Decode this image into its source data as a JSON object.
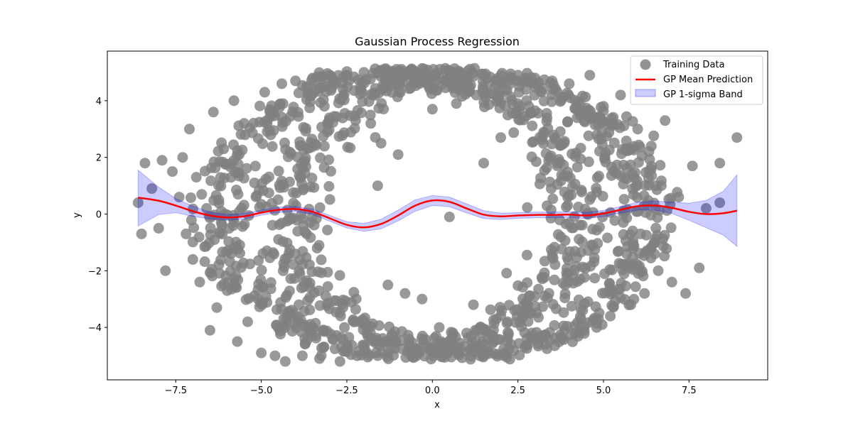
{
  "chart_data": {
    "type": "scatter",
    "title": "Gaussian Process Regression",
    "xlabel": "x",
    "ylabel": "y",
    "xlim": [
      -9.5,
      9.8
    ],
    "ylim": [
      -5.85,
      5.75
    ],
    "x_ticks": [
      -7.5,
      -5.0,
      -2.5,
      0.0,
      2.5,
      5.0,
      7.5
    ],
    "x_tick_labels": [
      "−7.5",
      "−5.0",
      "−2.5",
      "0.0",
      "2.5",
      "5.0",
      "7.5"
    ],
    "y_ticks": [
      -4,
      -2,
      0,
      2,
      4
    ],
    "y_tick_labels": [
      "−4",
      "−2",
      "0",
      "2",
      "4"
    ],
    "grid": false,
    "legend_position": "top-right",
    "colors": {
      "points": "#808080",
      "mean": "#ff0000",
      "band": "#0000ff"
    },
    "series": [
      {
        "name": "Training Data",
        "kind": "scatter",
        "description": "dense ring-shaped cloud of points roughly following two overlapping ellipses centered near (0,0) with x-radius ~6.5 and y-radius ~5",
        "points": [
          [
            -8.6,
            0.4
          ],
          [
            -8.5,
            -0.7
          ],
          [
            -8.4,
            1.8
          ],
          [
            -8.2,
            0.9
          ],
          [
            -8.0,
            -0.5
          ],
          [
            -7.9,
            1.9
          ],
          [
            -7.8,
            -2.0
          ],
          [
            -7.6,
            1.5
          ],
          [
            -7.4,
            0.6
          ],
          [
            -7.3,
            2.0
          ],
          [
            -7.2,
            -0.7
          ],
          [
            -7.1,
            3.0
          ],
          [
            -7.0,
            -1.6
          ],
          [
            -6.9,
            1.3
          ],
          [
            -6.8,
            -2.4
          ],
          [
            -6.6,
            0.2
          ],
          [
            -6.5,
            -4.1
          ],
          [
            -6.4,
            3.6
          ],
          [
            -6.3,
            -3.3
          ],
          [
            -6.1,
            2.3
          ],
          [
            -6.0,
            -2.7
          ],
          [
            -5.8,
            4.0
          ],
          [
            -5.7,
            -4.5
          ],
          [
            -5.5,
            3.2
          ],
          [
            -5.4,
            -3.8
          ],
          [
            -5.2,
            1.1
          ],
          [
            -5.0,
            -4.9
          ],
          [
            -4.9,
            4.3
          ],
          [
            -4.6,
            -5.0
          ],
          [
            -4.4,
            4.6
          ],
          [
            -4.3,
            -5.2
          ],
          [
            -4.0,
            4.7
          ],
          [
            -3.8,
            -5.0
          ],
          [
            -3.5,
            4.8
          ],
          [
            -3.3,
            -5.1
          ],
          [
            -3.0,
            4.9
          ],
          [
            -2.7,
            -5.2
          ],
          [
            -2.5,
            4.9
          ],
          [
            -2.2,
            -5.0
          ],
          [
            -2.0,
            5.0
          ],
          [
            -1.8,
            3.2
          ],
          [
            -1.6,
            1.0
          ],
          [
            -1.5,
            2.5
          ],
          [
            -1.3,
            -2.5
          ],
          [
            -1.0,
            2.1
          ],
          [
            -0.8,
            -2.8
          ],
          [
            -0.5,
            5.0
          ],
          [
            -0.3,
            -3.0
          ],
          [
            0.0,
            3.7
          ],
          [
            0.2,
            -4.0
          ],
          [
            0.5,
            -0.1
          ],
          [
            0.7,
            3.9
          ],
          [
            1.0,
            -4.2
          ],
          [
            1.2,
            -3.2
          ],
          [
            1.5,
            1.8
          ],
          [
            1.8,
            -4.5
          ],
          [
            2.0,
            2.7
          ],
          [
            2.3,
            -4.6
          ],
          [
            2.5,
            4.9
          ],
          [
            2.7,
            -4.7
          ],
          [
            3.0,
            4.8
          ],
          [
            3.3,
            -4.6
          ],
          [
            3.5,
            4.7
          ],
          [
            3.8,
            -4.4
          ],
          [
            4.0,
            4.6
          ],
          [
            4.3,
            -4.2
          ],
          [
            4.6,
            4.9
          ],
          [
            4.8,
            -4.0
          ],
          [
            5.0,
            3.8
          ],
          [
            5.2,
            -3.6
          ],
          [
            5.5,
            4.2
          ],
          [
            5.8,
            -3.2
          ],
          [
            6.0,
            3.0
          ],
          [
            6.2,
            -2.8
          ],
          [
            6.4,
            2.4
          ],
          [
            6.6,
            -2.0
          ],
          [
            6.8,
            3.3
          ],
          [
            7.0,
            -2.4
          ],
          [
            7.2,
            0.6
          ],
          [
            7.4,
            -2.8
          ],
          [
            7.6,
            1.7
          ],
          [
            7.8,
            -1.9
          ],
          [
            8.0,
            0.2
          ],
          [
            8.4,
            1.8
          ],
          [
            8.4,
            0.4
          ],
          [
            8.9,
            2.7
          ]
        ]
      },
      {
        "name": "GP Mean Prediction",
        "kind": "line",
        "x": [
          -8.6,
          -8.0,
          -7.5,
          -7.0,
          -6.5,
          -6.0,
          -5.5,
          -5.0,
          -4.5,
          -4.0,
          -3.5,
          -3.0,
          -2.5,
          -2.0,
          -1.5,
          -1.0,
          -0.5,
          0.0,
          0.5,
          1.0,
          1.5,
          2.0,
          2.5,
          3.0,
          3.5,
          4.0,
          4.5,
          5.0,
          5.5,
          6.0,
          6.5,
          7.0,
          7.5,
          8.0,
          8.5,
          8.9
        ],
        "y": [
          0.58,
          0.47,
          0.3,
          0.1,
          -0.05,
          -0.12,
          -0.08,
          0.05,
          0.15,
          0.18,
          0.08,
          -0.15,
          -0.38,
          -0.47,
          -0.35,
          -0.05,
          0.3,
          0.48,
          0.43,
          0.2,
          -0.02,
          -0.08,
          -0.05,
          -0.03,
          -0.03,
          -0.02,
          -0.05,
          0.02,
          0.15,
          0.28,
          0.3,
          0.22,
          0.08,
          0.0,
          0.03,
          0.12
        ]
      },
      {
        "name": "GP 1-sigma Band",
        "kind": "area",
        "x": [
          -8.6,
          -8.0,
          -7.5,
          -7.0,
          -6.5,
          -6.0,
          -5.5,
          -5.0,
          -4.5,
          -4.0,
          -3.5,
          -3.0,
          -2.5,
          -2.0,
          -1.5,
          -1.0,
          -0.5,
          0.0,
          0.5,
          1.0,
          1.5,
          2.0,
          2.5,
          3.0,
          3.5,
          4.0,
          4.5,
          5.0,
          5.5,
          6.0,
          6.5,
          7.0,
          7.5,
          8.0,
          8.5,
          8.9
        ],
        "y_upper": [
          1.55,
          0.95,
          0.55,
          0.28,
          0.07,
          -0.02,
          0.02,
          0.14,
          0.24,
          0.27,
          0.17,
          -0.05,
          -0.27,
          -0.33,
          -0.18,
          0.14,
          0.5,
          0.66,
          0.6,
          0.36,
          0.12,
          0.03,
          0.05,
          0.07,
          0.07,
          0.08,
          0.06,
          0.13,
          0.27,
          0.42,
          0.46,
          0.42,
          0.38,
          0.48,
          0.8,
          1.38
        ],
        "y_lower": [
          -0.42,
          -0.02,
          0.05,
          -0.08,
          -0.17,
          -0.22,
          -0.18,
          -0.04,
          0.06,
          0.09,
          -0.01,
          -0.25,
          -0.49,
          -0.61,
          -0.52,
          -0.24,
          0.1,
          0.3,
          0.26,
          0.04,
          -0.16,
          -0.19,
          -0.15,
          -0.13,
          -0.13,
          -0.12,
          -0.16,
          -0.09,
          0.03,
          0.14,
          0.14,
          0.02,
          -0.22,
          -0.48,
          -0.74,
          -1.14
        ]
      }
    ]
  }
}
